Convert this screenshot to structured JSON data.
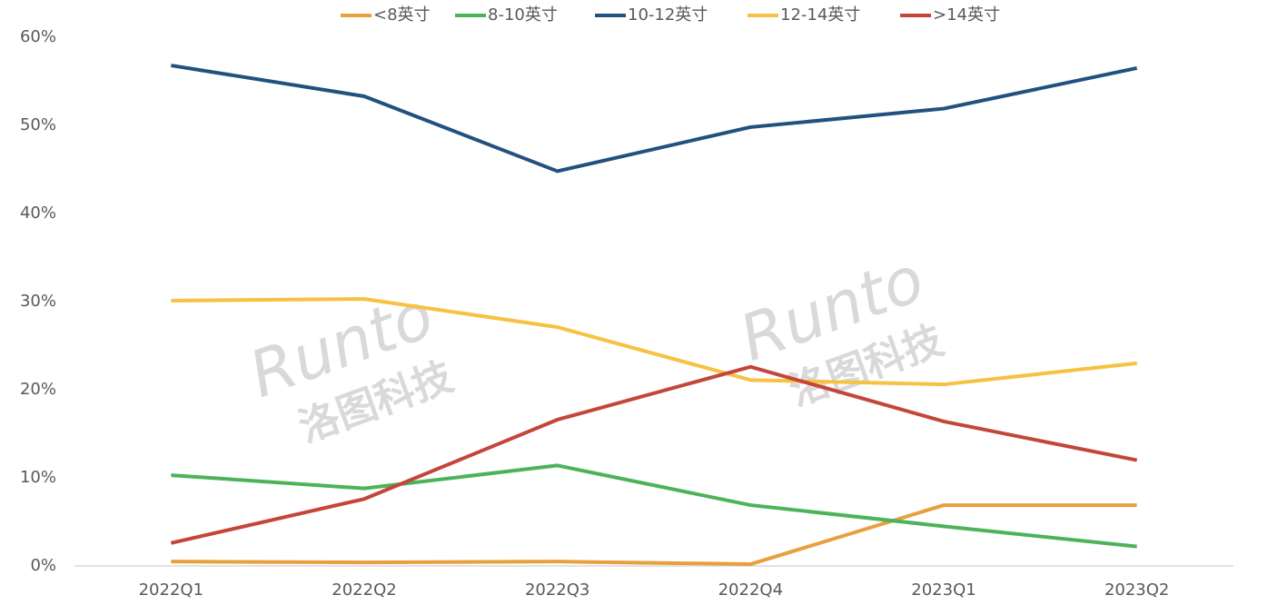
{
  "chart_data": {
    "type": "line",
    "categories": [
      "2022Q1",
      "2022Q2",
      "2022Q3",
      "2022Q4",
      "2023Q1",
      "2023Q2"
    ],
    "series": [
      {
        "name": "<8英寸",
        "color": "#e8a03c",
        "values": [
          0.5,
          0.4,
          0.5,
          0.2,
          6.9,
          6.9
        ]
      },
      {
        "name": "8-10英寸",
        "color": "#4db35a",
        "values": [
          10.3,
          8.8,
          11.4,
          6.9,
          4.5,
          2.2
        ]
      },
      {
        "name": "10-12英寸",
        "color": "#22517f",
        "values": [
          56.8,
          53.3,
          44.8,
          49.8,
          51.9,
          56.5
        ]
      },
      {
        "name": "12-14英寸",
        "color": "#f5c242",
        "values": [
          30.1,
          30.3,
          27.1,
          21.1,
          20.6,
          23.0
        ]
      },
      {
        "name": ">14英寸",
        "color": "#c4463a",
        "values": [
          2.6,
          7.6,
          16.6,
          22.6,
          16.4,
          12.0
        ]
      }
    ],
    "ylim": [
      0,
      60
    ],
    "yticks": [
      {
        "value": 0,
        "label": "0%"
      },
      {
        "value": 10,
        "label": "10%"
      },
      {
        "value": 20,
        "label": "20%"
      },
      {
        "value": 30,
        "label": "30%"
      },
      {
        "value": 40,
        "label": "40%"
      },
      {
        "value": 50,
        "label": "50%"
      },
      {
        "value": 60,
        "label": "60%"
      }
    ],
    "grid": false,
    "legend": "top",
    "watermark": {
      "brand": "Runto",
      "company": "洛图科技"
    }
  }
}
